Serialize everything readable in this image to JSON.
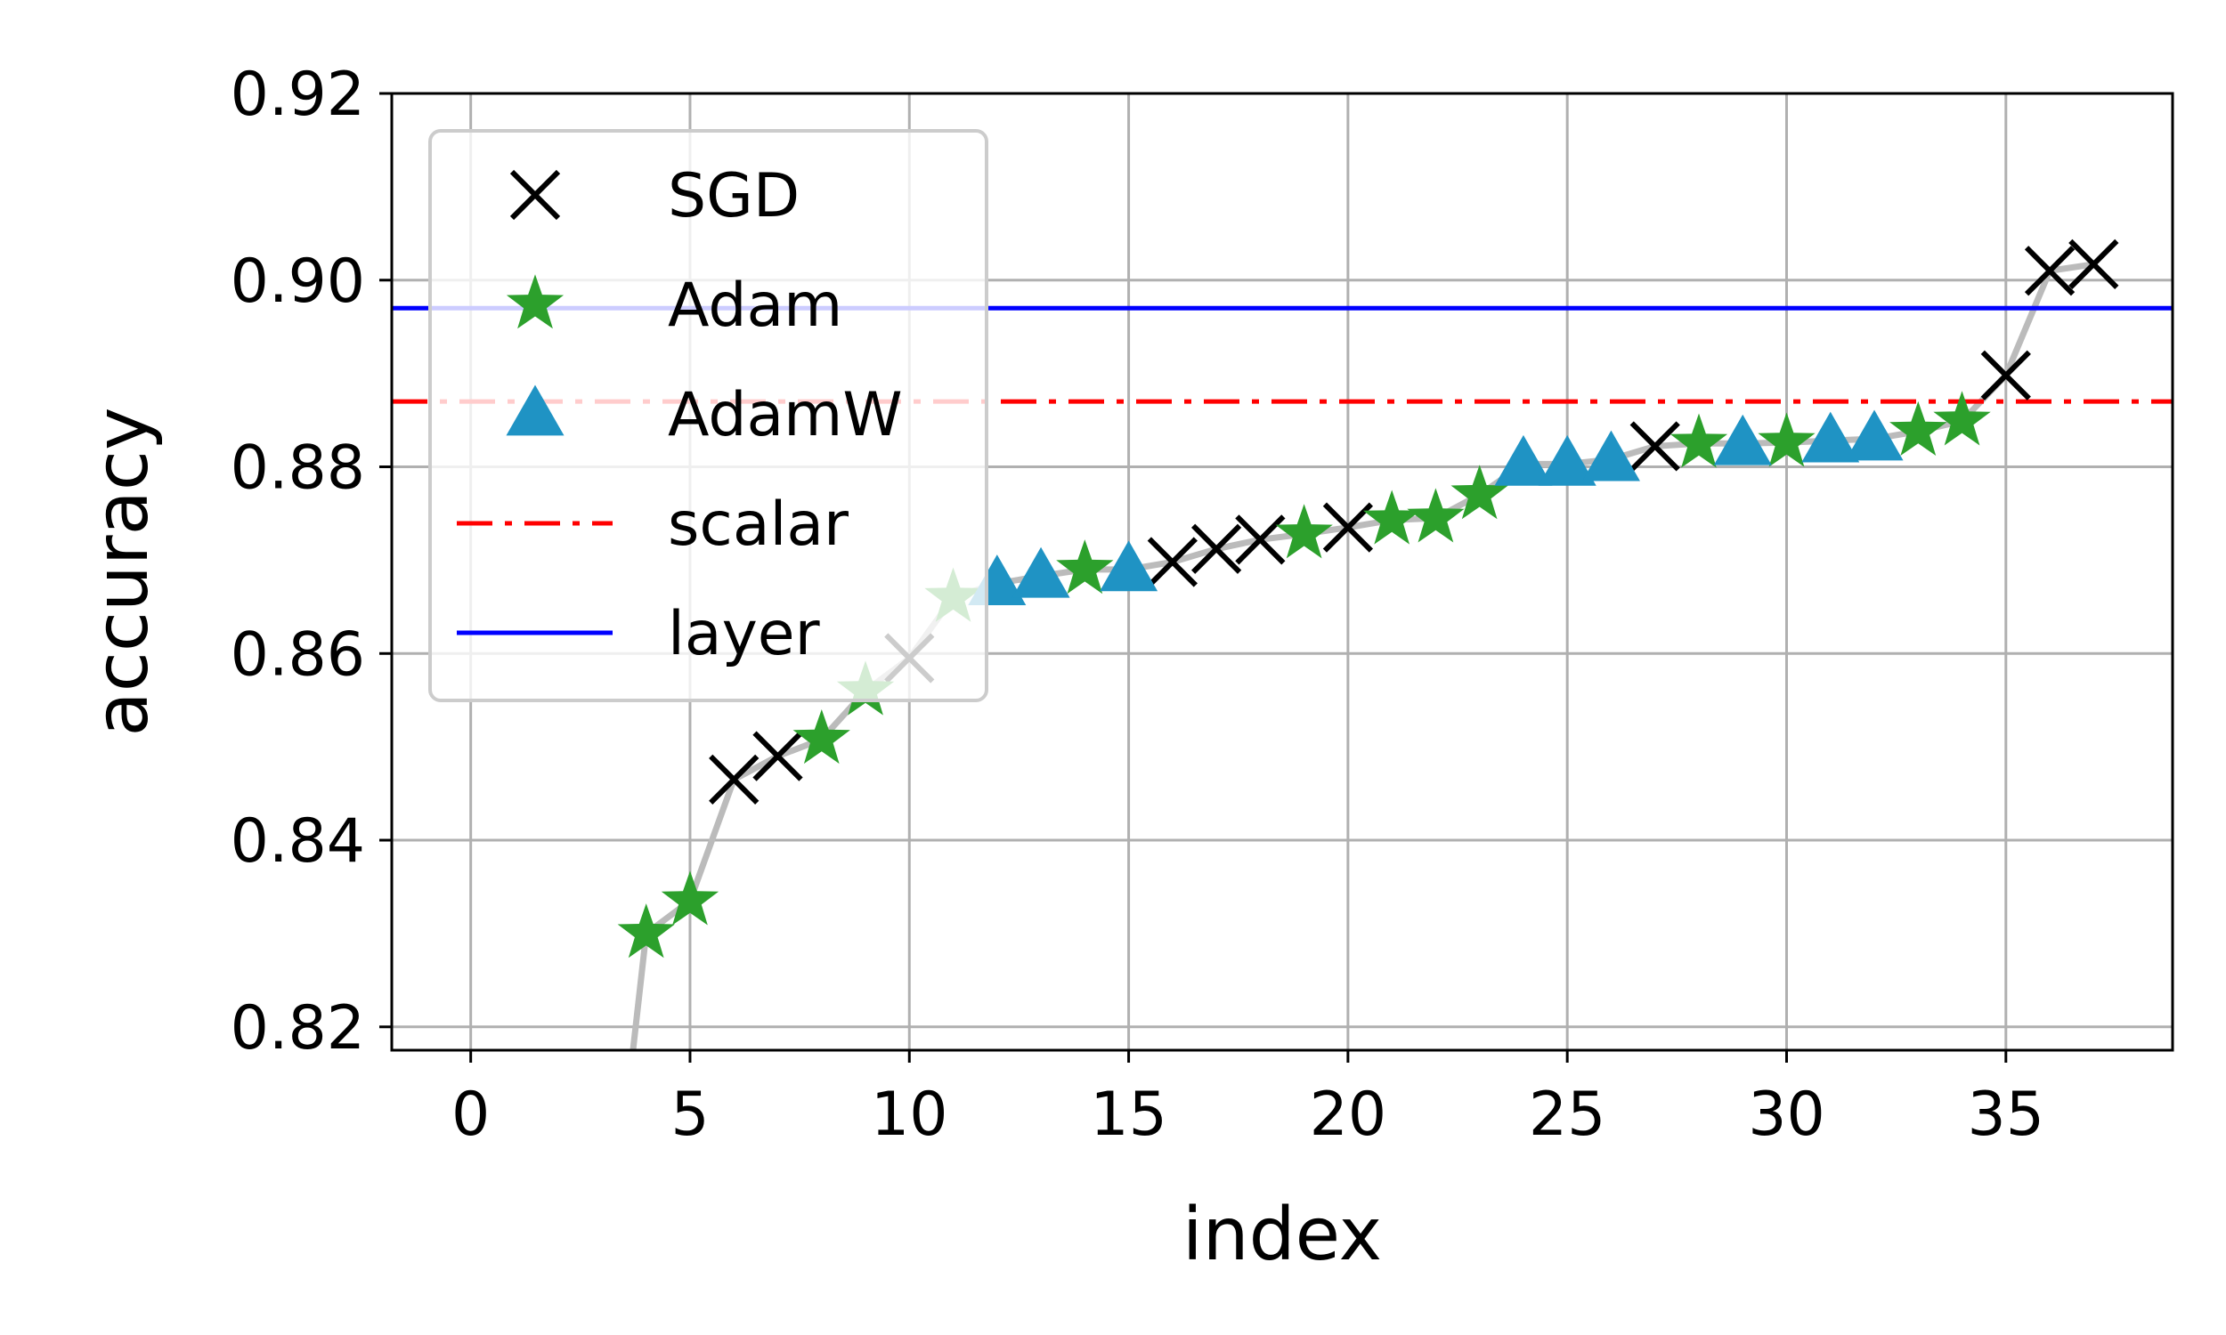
{
  "chart_data": {
    "type": "scatter",
    "title": "",
    "xlabel": "index",
    "ylabel": "accuracy",
    "xlim": [
      -1.8,
      38.8
    ],
    "ylim": [
      0.8175,
      0.92
    ],
    "xticks": [
      0,
      5,
      10,
      15,
      20,
      25,
      30,
      35
    ],
    "xtick_labels": [
      "0",
      "5",
      "10",
      "15",
      "20",
      "25",
      "30",
      "35"
    ],
    "yticks": [
      0.82,
      0.84,
      0.86,
      0.88,
      0.9,
      0.92
    ],
    "ytick_labels": [
      "0.82",
      "0.84",
      "0.86",
      "0.88",
      "0.90",
      "0.92"
    ],
    "grid": true,
    "legend_position": "top-left",
    "trend_line": {
      "color": "#bbbbbb",
      "x": [
        3.7,
        4,
        5,
        6,
        7,
        8,
        9,
        10,
        11,
        12,
        13,
        14,
        15,
        16,
        17,
        18,
        19,
        20,
        21,
        22,
        23,
        24,
        25,
        26,
        27,
        28,
        29,
        30,
        31,
        32,
        33,
        34,
        35,
        36,
        37
      ],
      "y": [
        0.8175,
        0.83,
        0.8335,
        0.8465,
        0.849,
        0.8508,
        0.856,
        0.8595,
        0.866,
        0.8675,
        0.8683,
        0.869,
        0.869,
        0.8698,
        0.8712,
        0.8722,
        0.8728,
        0.8735,
        0.8743,
        0.8745,
        0.877,
        0.8803,
        0.8803,
        0.8808,
        0.8822,
        0.8825,
        0.8825,
        0.8826,
        0.8828,
        0.883,
        0.8838,
        0.8849,
        0.8898,
        0.901,
        0.9017
      ]
    },
    "series": [
      {
        "name": "SGD",
        "marker": "x",
        "color": "#000000",
        "x": [
          6,
          7,
          10,
          16,
          17,
          18,
          20,
          27,
          35,
          36,
          37
        ],
        "y": [
          0.8465,
          0.849,
          0.8595,
          0.8698,
          0.8712,
          0.8722,
          0.8735,
          0.8822,
          0.8898,
          0.901,
          0.9017
        ]
      },
      {
        "name": "Adam",
        "marker": "star",
        "color": "#2ca02c",
        "x": [
          4,
          5,
          8,
          9,
          11,
          14,
          19,
          21,
          22,
          23,
          28,
          30,
          33,
          34
        ],
        "y": [
          0.83,
          0.8335,
          0.8508,
          0.856,
          0.866,
          0.869,
          0.8728,
          0.8743,
          0.8745,
          0.877,
          0.8825,
          0.8826,
          0.8838,
          0.8849
        ]
      },
      {
        "name": "AdamW",
        "marker": "triangle",
        "color": "#1f93c4",
        "x": [
          12,
          13,
          15,
          24,
          25,
          26,
          29,
          31,
          32
        ],
        "y": [
          0.8675,
          0.8683,
          0.869,
          0.8803,
          0.8803,
          0.8808,
          0.8825,
          0.8828,
          0.883
        ]
      }
    ],
    "hlines": [
      {
        "name": "scalar",
        "y": 0.887,
        "color": "#ff0000",
        "style": "dashdot"
      },
      {
        "name": "layer",
        "y": 0.897,
        "color": "#0000ff",
        "style": "solid"
      }
    ]
  }
}
